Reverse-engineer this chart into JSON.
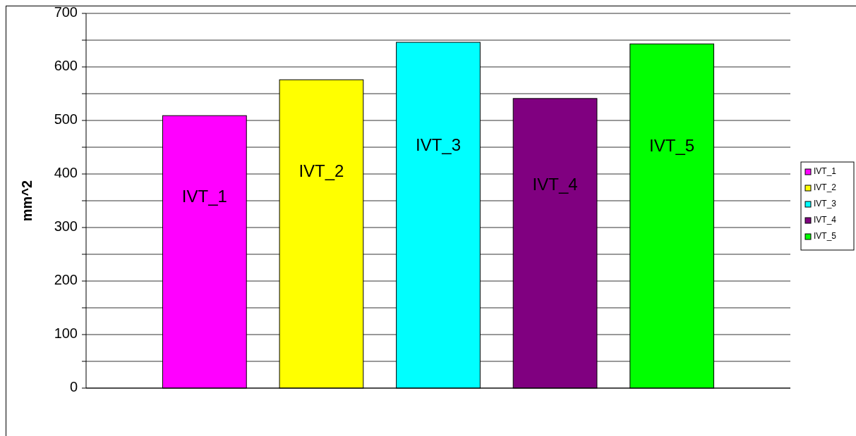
{
  "chart_data": {
    "type": "bar",
    "ylabel": "mm^2",
    "categories": [
      null
    ],
    "series": [
      {
        "name": "IVT_1",
        "color": "#ff00ff",
        "values": [
          509
        ]
      },
      {
        "name": "IVT_2",
        "color": "#ffff00",
        "values": [
          576
        ]
      },
      {
        "name": "IVT_3",
        "color": "#00ffff",
        "values": [
          646
        ]
      },
      {
        "name": "IVT_4",
        "color": "#800080",
        "values": [
          541
        ]
      },
      {
        "name": "IVT_5",
        "color": "#00ff00",
        "values": [
          643
        ]
      }
    ],
    "ylim": [
      0,
      700
    ],
    "yticks": [
      0,
      {
        "value": 50,
        "label": null
      },
      100,
      {
        "value": 150,
        "label": null
      },
      200,
      {
        "value": 250,
        "label": null
      },
      300,
      {
        "value": 350,
        "label": null
      },
      400,
      {
        "value": 450,
        "label": null
      },
      500,
      {
        "value": 550,
        "label": null
      },
      600,
      {
        "value": 650,
        "label": null
      },
      700
    ],
    "grid": true,
    "legend": "right"
  }
}
